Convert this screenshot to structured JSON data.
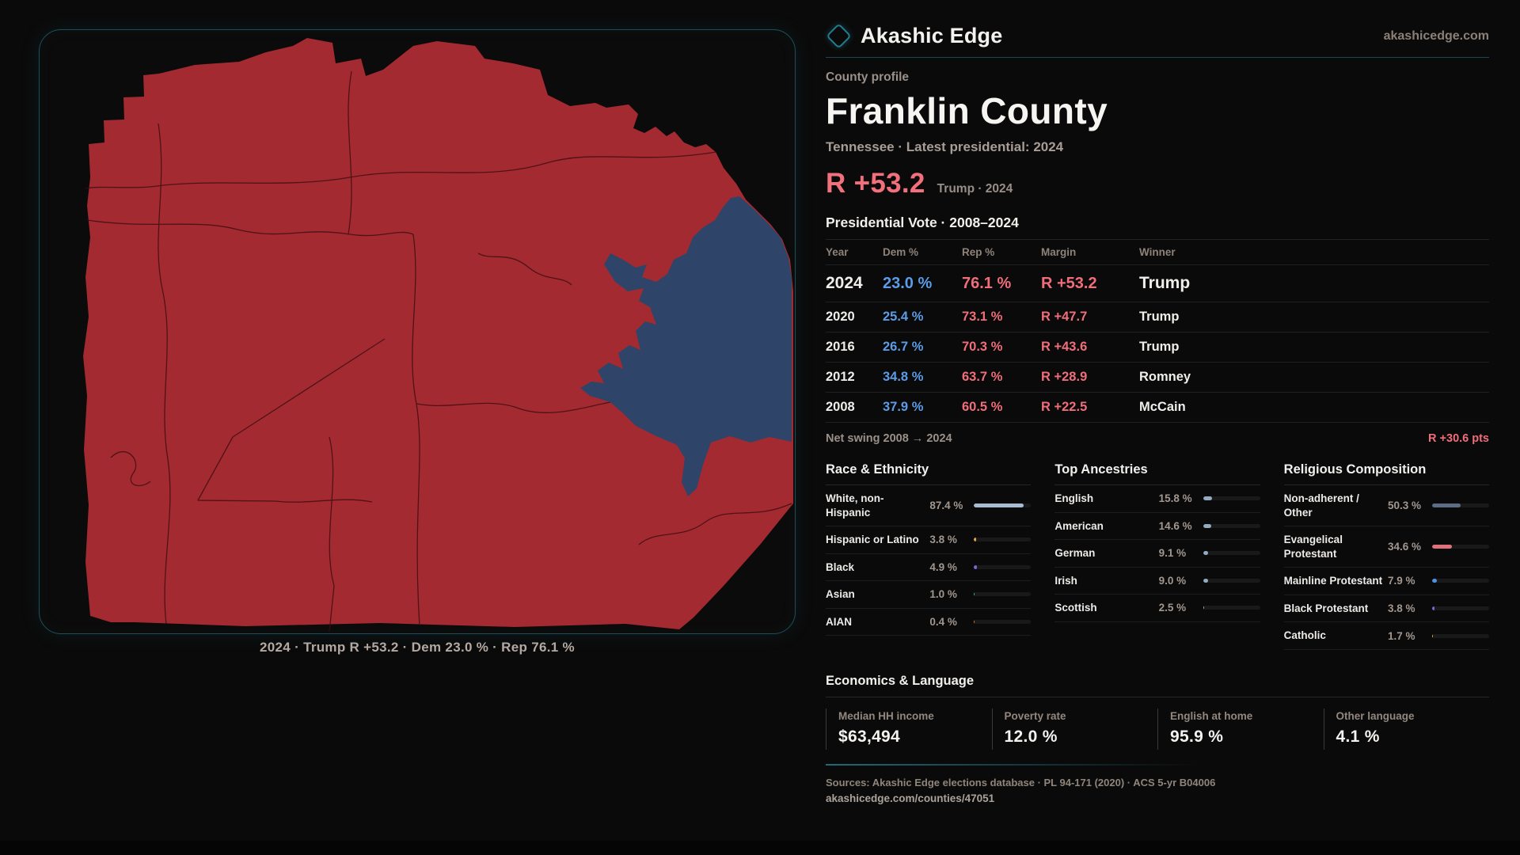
{
  "brand": {
    "name": "Akashic Edge",
    "domain": "akashicedge.com"
  },
  "profile": {
    "eyebrow": "County profile",
    "title": "Franklin County",
    "subtitle": "Tennessee · Latest presidential: 2024",
    "headline_margin": "R +53.2",
    "headline_note": "Trump · 2024"
  },
  "map": {
    "caption": "2024 · Trump  R +53.2 · Dem 23.0 % · Rep 76.1 %",
    "rep_color": "#a42a31",
    "dem_color": "#2e4569",
    "boundary_color": "#3a0d11"
  },
  "vote_table": {
    "title": "Presidential Vote · 2008–2024",
    "columns": [
      "Year",
      "Dem %",
      "Rep %",
      "Margin",
      "Winner"
    ],
    "rows": [
      {
        "year": "2024",
        "dem": "23.0 %",
        "rep": "76.1 %",
        "margin": "R +53.2",
        "winner": "Trump",
        "highlight": true
      },
      {
        "year": "2020",
        "dem": "25.4 %",
        "rep": "73.1 %",
        "margin": "R +47.7",
        "winner": "Trump",
        "highlight": false
      },
      {
        "year": "2016",
        "dem": "26.7 %",
        "rep": "70.3 %",
        "margin": "R +43.6",
        "winner": "Trump",
        "highlight": false
      },
      {
        "year": "2012",
        "dem": "34.8 %",
        "rep": "63.7 %",
        "margin": "R +28.9",
        "winner": "Romney",
        "highlight": false
      },
      {
        "year": "2008",
        "dem": "37.9 %",
        "rep": "60.5 %",
        "margin": "R +22.5",
        "winner": "McCain",
        "highlight": false
      }
    ],
    "net_swing_label": "Net swing 2008 → 2024",
    "net_swing_value": "R +30.6 pts"
  },
  "demographics": [
    {
      "title": "Race & Ethnicity",
      "rows": [
        {
          "label": "White, non-Hispanic",
          "value": "87.4 %",
          "pct": 87.4,
          "color": "#a6bdd1"
        },
        {
          "label": "Hispanic or Latino",
          "value": "3.8 %",
          "pct": 3.8,
          "color": "#e3a43a"
        },
        {
          "label": "Black",
          "value": "4.9 %",
          "pct": 4.9,
          "color": "#7e66da"
        },
        {
          "label": "Asian",
          "value": "1.0 %",
          "pct": 1.0,
          "color": "#35b99a"
        },
        {
          "label": "AIAN",
          "value": "0.4 %",
          "pct": 0.4,
          "color": "#cf7a33"
        }
      ]
    },
    {
      "title": "Top Ancestries",
      "rows": [
        {
          "label": "English",
          "value": "15.8 %",
          "pct": 15.8,
          "color": "#93aabf"
        },
        {
          "label": "American",
          "value": "14.6 %",
          "pct": 14.6,
          "color": "#93aabf"
        },
        {
          "label": "German",
          "value": "9.1 %",
          "pct": 9.1,
          "color": "#93aabf"
        },
        {
          "label": "Irish",
          "value": "9.0 %",
          "pct": 9.0,
          "color": "#93aabf"
        },
        {
          "label": "Scottish",
          "value": "2.5 %",
          "pct": 2.5,
          "color": "#93aabf"
        }
      ]
    },
    {
      "title": "Religious Composition",
      "rows": [
        {
          "label": "Non-adherent / Other",
          "value": "50.3 %",
          "pct": 50.3,
          "color": "#5d6c85"
        },
        {
          "label": "Evangelical Protestant",
          "value": "34.6 %",
          "pct": 34.6,
          "color": "#e0707b"
        },
        {
          "label": "Mainline Protestant",
          "value": "7.9 %",
          "pct": 7.9,
          "color": "#4a94e8"
        },
        {
          "label": "Black Protestant",
          "value": "3.8 %",
          "pct": 3.8,
          "color": "#7e66da"
        },
        {
          "label": "Catholic",
          "value": "1.7 %",
          "pct": 1.7,
          "color": "#d7a82b"
        }
      ]
    }
  ],
  "economics": {
    "title": "Economics & Language",
    "stats": [
      {
        "label": "Median HH income",
        "value": "$63,494"
      },
      {
        "label": "Poverty rate",
        "value": "12.0 %"
      },
      {
        "label": "English at home",
        "value": "95.9 %"
      },
      {
        "label": "Other language",
        "value": "4.1 %"
      }
    ]
  },
  "footer": {
    "sources": "Sources: Akashic Edge elections database · PL 94-171 (2020) · ACS 5-yr B04006",
    "permalink": "akashicedge.com/counties/47051"
  }
}
